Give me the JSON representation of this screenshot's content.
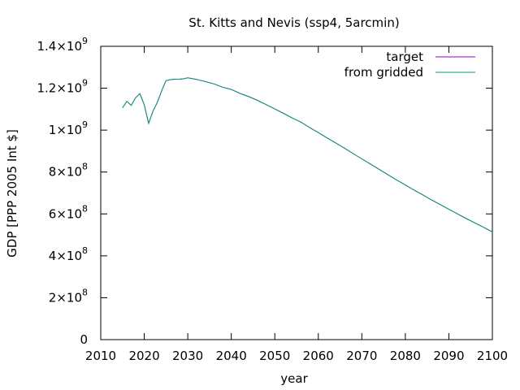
{
  "chart_data": {
    "type": "line",
    "title": "St. Kitts and Nevis (ssp4, 5arcmin)",
    "xlabel": "year",
    "ylabel": "GDP [PPP 2005 Int $]",
    "xlim": [
      2010,
      2100
    ],
    "ylim": [
      0,
      1400000000
    ],
    "x_ticks": [
      {
        "value": 2010,
        "label": "2010"
      },
      {
        "value": 2020,
        "label": "2020"
      },
      {
        "value": 2030,
        "label": "2030"
      },
      {
        "value": 2040,
        "label": "2040"
      },
      {
        "value": 2050,
        "label": "2050"
      },
      {
        "value": 2060,
        "label": "2060"
      },
      {
        "value": 2070,
        "label": "2070"
      },
      {
        "value": 2080,
        "label": "2080"
      },
      {
        "value": 2090,
        "label": "2090"
      },
      {
        "value": 2100,
        "label": "2100"
      }
    ],
    "y_ticks": [
      {
        "value": 0,
        "mant": "0",
        "exp": ""
      },
      {
        "value": 200000000,
        "mant": "2×10",
        "exp": "8"
      },
      {
        "value": 400000000,
        "mant": "4×10",
        "exp": "8"
      },
      {
        "value": 600000000,
        "mant": "6×10",
        "exp": "8"
      },
      {
        "value": 800000000,
        "mant": "8×10",
        "exp": "8"
      },
      {
        "value": 1000000000,
        "mant": "1×10",
        "exp": "9"
      },
      {
        "value": 1200000000,
        "mant": "1.2×10",
        "exp": "9"
      },
      {
        "value": 1400000000,
        "mant": "1.4×10",
        "exp": "9"
      }
    ],
    "grid": false,
    "legend_position": "top-right",
    "x": [
      2015,
      2016,
      2017,
      2018,
      2019,
      2020,
      2021,
      2022,
      2023,
      2024,
      2025,
      2026,
      2027,
      2028,
      2029,
      2030,
      2032,
      2034,
      2036,
      2038,
      2040,
      2042,
      2044,
      2046,
      2048,
      2050,
      2052,
      2054,
      2056,
      2058,
      2060,
      2062,
      2064,
      2066,
      2068,
      2070,
      2072,
      2074,
      2076,
      2078,
      2080,
      2082,
      2084,
      2086,
      2088,
      2090,
      2092,
      2094,
      2096,
      2098,
      2100
    ],
    "series": [
      {
        "name": "target",
        "color": "#9400d3",
        "values": [
          1107000000,
          1138000000,
          1118000000,
          1154000000,
          1174000000,
          1120000000,
          1032000000,
          1091000000,
          1132000000,
          1188000000,
          1236000000,
          1241000000,
          1243000000,
          1243000000,
          1245000000,
          1250000000,
          1242000000,
          1232000000,
          1221000000,
          1205000000,
          1194000000,
          1175000000,
          1160000000,
          1142000000,
          1122000000,
          1101000000,
          1080000000,
          1058000000,
          1038000000,
          1012000000,
          988000000,
          963000000,
          939000000,
          914000000,
          888000000,
          863000000,
          838000000,
          812000000,
          787000000,
          762000000,
          738000000,
          714000000,
          691000000,
          667000000,
          645000000,
          622000000,
          600000000,
          578000000,
          557000000,
          536000000,
          514000000
        ]
      },
      {
        "name": "from gridded",
        "color": "#009e73",
        "values": [
          1107000000,
          1138000000,
          1118000000,
          1154000000,
          1174000000,
          1120000000,
          1032000000,
          1091000000,
          1132000000,
          1188000000,
          1236000000,
          1241000000,
          1243000000,
          1243000000,
          1245000000,
          1250000000,
          1242000000,
          1232000000,
          1221000000,
          1205000000,
          1194000000,
          1175000000,
          1160000000,
          1142000000,
          1122000000,
          1101000000,
          1080000000,
          1058000000,
          1038000000,
          1012000000,
          988000000,
          963000000,
          939000000,
          914000000,
          888000000,
          863000000,
          838000000,
          812000000,
          787000000,
          762000000,
          738000000,
          714000000,
          691000000,
          667000000,
          645000000,
          622000000,
          600000000,
          578000000,
          557000000,
          536000000,
          514000000
        ]
      }
    ]
  }
}
